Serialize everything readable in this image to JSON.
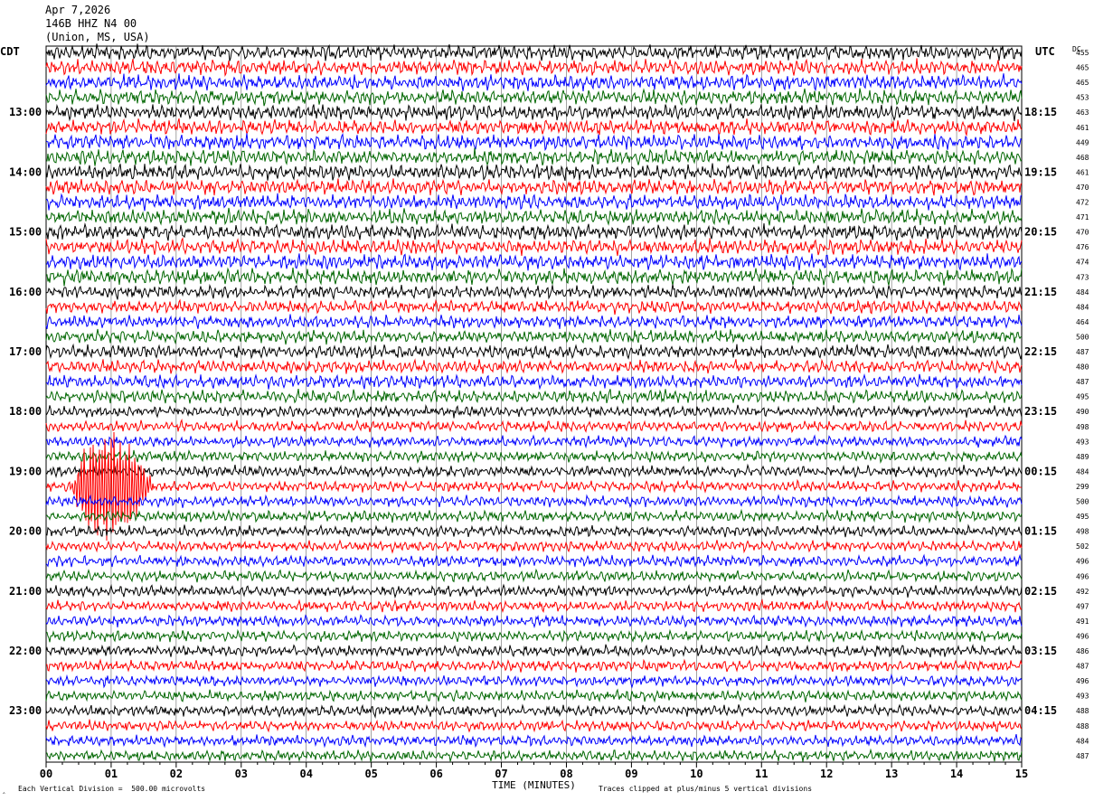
{
  "header": {
    "date": "Apr 7,2026",
    "channel": "146B HHZ N4 00",
    "location": "(Union, MS, USA)"
  },
  "left_zone_label": "CDT",
  "right_zone_label": "UTC",
  "dc_label": "DC",
  "footer": {
    "scale_note": "Each Vertical Division =  500.00 microvolts",
    "clip_note": "Traces clipped at plus/minus 5 vertical divisions",
    "corner_mark": "‸"
  },
  "colors": {
    "trace_cycle": [
      "#000000",
      "#ff0000",
      "#0000ff",
      "#006600"
    ],
    "grid": "#666666"
  },
  "chart_data": {
    "type": "line",
    "chart_kind": "helicorder",
    "xlabel": "TIME (MINUTES)",
    "x_ticks": [
      "00",
      "01",
      "02",
      "03",
      "04",
      "05",
      "06",
      "07",
      "08",
      "09",
      "10",
      "11",
      "12",
      "13",
      "14",
      "15"
    ],
    "xlim": [
      0,
      15
    ],
    "trace_count": 48,
    "minutes_per_trace": 15,
    "left_hour_labels": [
      "13:00",
      "14:00",
      "15:00",
      "16:00",
      "17:00",
      "18:00",
      "19:00",
      "20:00",
      "21:00",
      "22:00",
      "23:00"
    ],
    "right_hour_labels": [
      "18:15",
      "19:15",
      "20:15",
      "21:15",
      "22:15",
      "23:15",
      "00:15",
      "01:15",
      "02:15",
      "03:15",
      "04:15"
    ],
    "hour_label_first_trace": 4,
    "dc_offsets": [
      455,
      465,
      465,
      453,
      463,
      461,
      449,
      468,
      461,
      470,
      472,
      471,
      470,
      476,
      474,
      473,
      484,
      484,
      464,
      500,
      487,
      480,
      487,
      495,
      490,
      498,
      493,
      489,
      484,
      299,
      500,
      495,
      498,
      502,
      496,
      496,
      492,
      497,
      491,
      496,
      486,
      487,
      496,
      493,
      488,
      488,
      484,
      487
    ],
    "trace_noise_amplitude": [
      7,
      7,
      7,
      7,
      7,
      7,
      7,
      7,
      7,
      7,
      7,
      7,
      7,
      7,
      7,
      7,
      6,
      6,
      6,
      6,
      6,
      6,
      6,
      6,
      5,
      5,
      5,
      5,
      5,
      5,
      5,
      5,
      5,
      5,
      5,
      5,
      5,
      5,
      5,
      5,
      5,
      5,
      5,
      5,
      5,
      5,
      5,
      5
    ],
    "events": [
      {
        "trace": 29,
        "start_minute": 0.35,
        "end_minute": 1.65,
        "peak_minute": 1.0,
        "peak_amplitude_divisions": 5,
        "clipped": true
      }
    ]
  }
}
